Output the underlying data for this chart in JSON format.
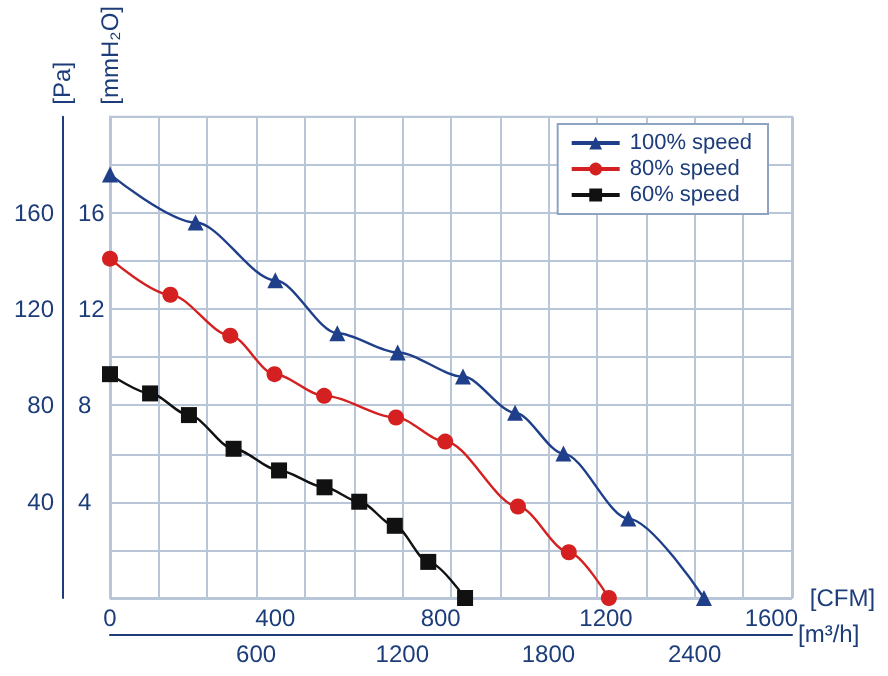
{
  "chart_data": {
    "type": "line",
    "xlabel": "[CFM]",
    "x2label": "[m³/h]",
    "ylabel": "[Pa]",
    "y2label": "[mmH₂O]",
    "xlim": [
      0,
      1650
    ],
    "xticks": [
      0,
      400,
      800,
      1200,
      1600
    ],
    "x2lim": [
      0,
      2800
    ],
    "x2ticks": [
      {
        "value": 0,
        "label": null
      },
      {
        "value": 200,
        "label": null
      },
      {
        "value": 400,
        "label": null
      },
      600,
      {
        "value": 800,
        "label": null
      },
      {
        "value": 1000,
        "label": null
      },
      1200,
      {
        "value": 1400,
        "label": null
      },
      {
        "value": 1600,
        "label": null
      },
      1800,
      {
        "value": 2000,
        "label": null
      },
      {
        "value": 2200,
        "label": null
      },
      2400,
      {
        "value": 2600,
        "label": null
      },
      {
        "value": 2800,
        "label": null
      }
    ],
    "ylim": [
      0,
      200
    ],
    "yticks": [
      {
        "value": 0,
        "label": null
      },
      {
        "value": 20,
        "label": null
      },
      40,
      {
        "value": 60,
        "label": null
      },
      80,
      {
        "value": 100,
        "label": null
      },
      120,
      {
        "value": 140,
        "label": null
      },
      160,
      {
        "value": 180,
        "label": null
      },
      {
        "value": 200,
        "label": null
      }
    ],
    "y2lim": [
      0,
      20
    ],
    "y2ticks": [
      4,
      8,
      12,
      16
    ],
    "grid": true,
    "legend": "top right",
    "series": [
      {
        "name": "100% speed",
        "color": "#1f3f8a",
        "marker": "triangle",
        "x": [
          0,
          207,
          400,
          550,
          696,
          854,
          980,
          1097,
          1254,
          1437
        ],
        "values": [
          176,
          156,
          132,
          110,
          102,
          92,
          77,
          60,
          33,
          0
        ]
      },
      {
        "name": "80% speed",
        "color": "#d42020",
        "marker": "circle",
        "x": [
          0,
          146,
          291,
          398,
          518,
          692,
          811,
          987,
          1110,
          1207
        ],
        "values": [
          141,
          126,
          109,
          93,
          84,
          75,
          65,
          38,
          19,
          0
        ]
      },
      {
        "name": "60% speed",
        "color": "#111111",
        "marker": "square",
        "x": [
          0,
          97,
          191,
          299,
          409,
          519,
          603,
          689,
          770,
          859
        ],
        "values": [
          93,
          85,
          76,
          62,
          53,
          46,
          40,
          30,
          15,
          0
        ]
      }
    ]
  }
}
